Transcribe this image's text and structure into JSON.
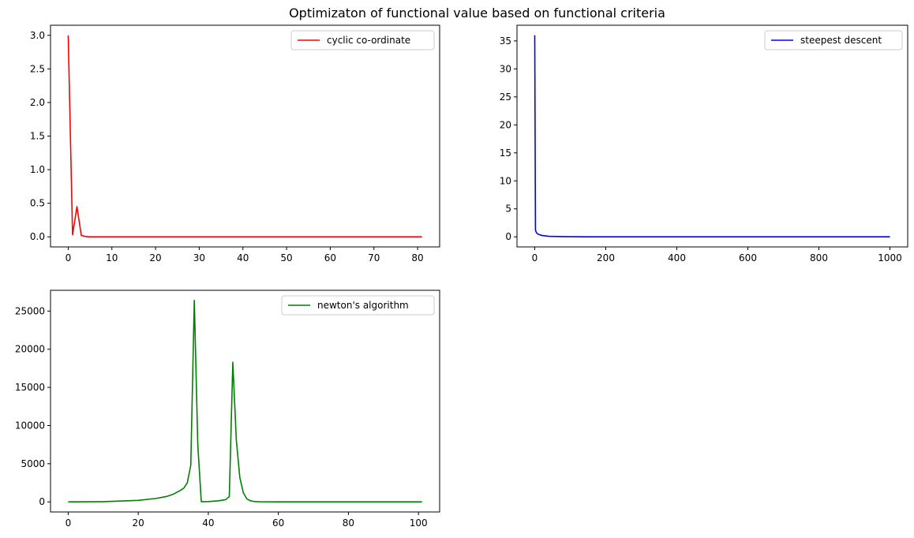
{
  "figure": {
    "suptitle": "Optimizaton of functional value based on functional criteria"
  },
  "chart_data": [
    {
      "type": "line",
      "title": "",
      "xlabel": "",
      "ylabel": "",
      "color": "#ff0000",
      "legend": {
        "label": "cyclic co-ordinate",
        "placement": "top-right"
      },
      "xlim": [
        -4.05,
        85.05
      ],
      "ylim": [
        -0.15,
        3.15
      ],
      "xticks": [
        0,
        10,
        20,
        30,
        40,
        50,
        60,
        70,
        80
      ],
      "yticks": [
        0.0,
        0.5,
        1.0,
        1.5,
        2.0,
        2.5,
        3.0
      ],
      "ytick_labels": [
        "0.0",
        "0.5",
        "1.0",
        "1.5",
        "2.0",
        "2.5",
        "3.0"
      ],
      "series": [
        {
          "name": "cyclic co-ordinate",
          "points": [
            [
              0,
              3.0
            ],
            [
              1,
              0.03
            ],
            [
              2,
              0.45
            ],
            [
              3,
              0.02
            ],
            [
              4,
              0.005
            ],
            [
              5,
              0.0
            ],
            [
              81,
              0.0
            ]
          ]
        }
      ]
    },
    {
      "type": "line",
      "title": "",
      "xlabel": "",
      "ylabel": "",
      "color": "#0000ff",
      "legend": {
        "label": "steepest descent",
        "placement": "top-right"
      },
      "xlim": [
        -50,
        1050
      ],
      "ylim": [
        -1.8,
        37.8
      ],
      "xticks": [
        0,
        200,
        400,
        600,
        800,
        1000
      ],
      "yticks": [
        0,
        5,
        10,
        15,
        20,
        25,
        30,
        35
      ],
      "ytick_labels": [
        "0",
        "5",
        "10",
        "15",
        "20",
        "25",
        "30",
        "35"
      ],
      "series": [
        {
          "name": "steepest descent",
          "points": [
            [
              0,
              36.0
            ],
            [
              2,
              1.2
            ],
            [
              5,
              0.7
            ],
            [
              10,
              0.45
            ],
            [
              20,
              0.25
            ],
            [
              40,
              0.1
            ],
            [
              80,
              0.04
            ],
            [
              150,
              0.01
            ],
            [
              300,
              0.0
            ],
            [
              1000,
              0.0
            ]
          ]
        }
      ]
    },
    {
      "type": "line",
      "title": "",
      "xlabel": "",
      "ylabel": "",
      "color": "#008000",
      "legend": {
        "label": "newton's algorithm",
        "placement": "top-right"
      },
      "xlim": [
        -5.05,
        106.05
      ],
      "ylim": [
        -1320,
        27720
      ],
      "xticks": [
        0,
        20,
        40,
        60,
        80,
        100
      ],
      "yticks": [
        0,
        5000,
        10000,
        15000,
        20000,
        25000
      ],
      "ytick_labels": [
        "0",
        "5000",
        "10000",
        "15000",
        "20000",
        "25000"
      ],
      "series": [
        {
          "name": "newton's algorithm",
          "points": [
            [
              0,
              0
            ],
            [
              10,
              30
            ],
            [
              20,
              200
            ],
            [
              25,
              450
            ],
            [
              28,
              700
            ],
            [
              30,
              1000
            ],
            [
              32,
              1500
            ],
            [
              33,
              1800
            ],
            [
              34,
              2500
            ],
            [
              35,
              4800
            ],
            [
              36,
              26400
            ],
            [
              37,
              7500
            ],
            [
              38,
              30
            ],
            [
              40,
              40
            ],
            [
              43,
              150
            ],
            [
              45,
              300
            ],
            [
              46,
              700
            ],
            [
              47,
              18300
            ],
            [
              48,
              8100
            ],
            [
              49,
              3200
            ],
            [
              50,
              1200
            ],
            [
              51,
              400
            ],
            [
              52,
              150
            ],
            [
              53,
              60
            ],
            [
              55,
              10
            ],
            [
              60,
              0
            ],
            [
              101,
              0
            ]
          ]
        }
      ]
    }
  ]
}
